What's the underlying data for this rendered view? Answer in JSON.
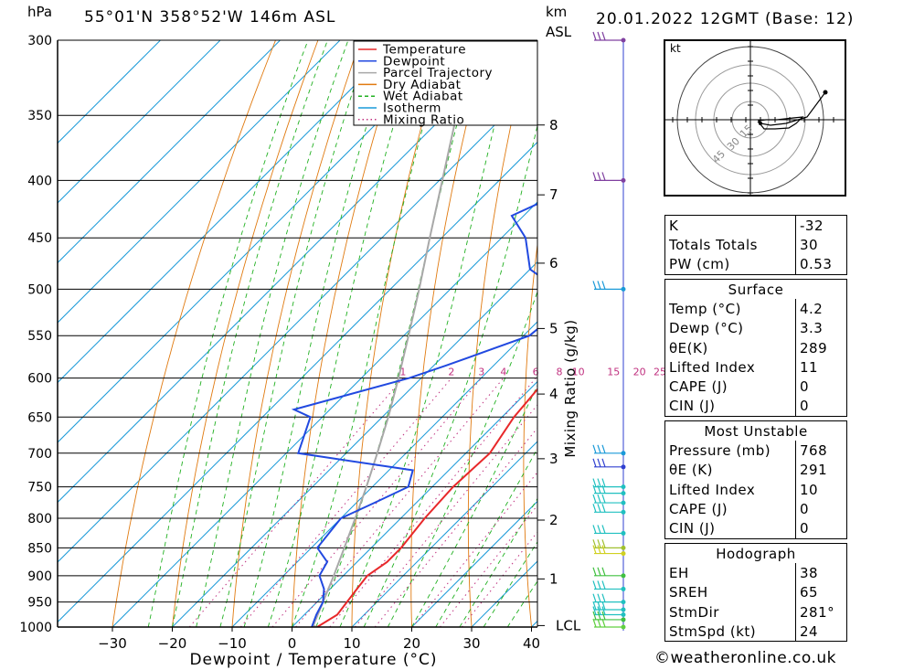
{
  "header": {
    "hpa_label": "hPa",
    "location": "55°01'N  358°52'W  146m  ASL",
    "km_label": "km",
    "asl_label": "ASL",
    "datetime": "20.01.2022  12GMT  (Base: 12)"
  },
  "chart_data": {
    "type": "line",
    "xlabel": "Dewpoint / Temperature (°C)",
    "ylabel": "hPa",
    "right_ylabel": "Mixing Ratio (g/kg)",
    "pressure_levels": [
      300,
      350,
      400,
      450,
      500,
      550,
      600,
      650,
      700,
      750,
      800,
      850,
      900,
      950,
      1000
    ],
    "x_ticks": [
      -30,
      -20,
      -10,
      0,
      10,
      20,
      30,
      40
    ],
    "xlim": [
      -40,
      40
    ],
    "km_ticks": [
      {
        "label": "8",
        "p": 357
      },
      {
        "label": "7",
        "p": 412
      },
      {
        "label": "6",
        "p": 474
      },
      {
        "label": "5",
        "p": 542
      },
      {
        "label": "4",
        "p": 620
      },
      {
        "label": "3",
        "p": 708
      },
      {
        "label": "2",
        "p": 803
      },
      {
        "label": "1",
        "p": 906
      },
      {
        "label": "LCL",
        "p": 997
      }
    ],
    "mixing_ratio_labels": [
      "1",
      "2",
      "3",
      "4",
      "6",
      "8",
      "10",
      "15",
      "20",
      "25"
    ],
    "legend": [
      {
        "name": "Temperature",
        "color": "#e8282a",
        "style": "solid"
      },
      {
        "name": "Dewpoint",
        "color": "#2149e0",
        "style": "solid"
      },
      {
        "name": "Parcel Trajectory",
        "color": "#a8a8a8",
        "style": "solid"
      },
      {
        "name": "Dry Adiabat",
        "color": "#e07a10",
        "style": "solid"
      },
      {
        "name": "Wet Adiabat",
        "color": "#20b020",
        "style": "dashed"
      },
      {
        "name": "Isotherm",
        "color": "#1a9ad8",
        "style": "solid"
      },
      {
        "name": "Mixing Ratio",
        "color": "#c0307f",
        "style": "dotted"
      }
    ],
    "temperature": [
      {
        "p": 1000,
        "t": 4.2
      },
      {
        "p": 975,
        "t": 5.5
      },
      {
        "p": 950,
        "t": 5.0
      },
      {
        "p": 925,
        "t": 4.5
      },
      {
        "p": 900,
        "t": 4.0
      },
      {
        "p": 875,
        "t": 5.0
      },
      {
        "p": 850,
        "t": 5.0
      },
      {
        "p": 825,
        "t": 4.5
      },
      {
        "p": 800,
        "t": 4.0
      },
      {
        "p": 750,
        "t": 3.5
      },
      {
        "p": 700,
        "t": 4.0
      },
      {
        "p": 650,
        "t": 2.0
      },
      {
        "p": 600,
        "t": 1.0
      },
      {
        "p": 550,
        "t": -2.0
      },
      {
        "p": 500,
        "t": -6.0
      },
      {
        "p": 450,
        "t": -11.5
      },
      {
        "p": 400,
        "t": -18.0
      },
      {
        "p": 350,
        "t": -25.0
      },
      {
        "p": 300,
        "t": -34.5
      }
    ],
    "dewpoint": [
      {
        "p": 1000,
        "t": 3.3
      },
      {
        "p": 975,
        "t": 2.0
      },
      {
        "p": 950,
        "t": 1.0
      },
      {
        "p": 925,
        "t": -1.0
      },
      {
        "p": 900,
        "t": -4.0
      },
      {
        "p": 875,
        "t": -5.0
      },
      {
        "p": 850,
        "t": -9.0
      },
      {
        "p": 800,
        "t": -10.0
      },
      {
        "p": 775,
        "t": -7.0
      },
      {
        "p": 750,
        "t": -4.0
      },
      {
        "p": 725,
        "t": -6.0
      },
      {
        "p": 700,
        "t": -28.0
      },
      {
        "p": 650,
        "t": -32.0
      },
      {
        "p": 640,
        "t": -36.0
      },
      {
        "p": 600,
        "t": -22.0
      },
      {
        "p": 585,
        "t": -18.0
      },
      {
        "p": 550,
        "t": -9.0
      },
      {
        "p": 520,
        "t": -8.0
      },
      {
        "p": 500,
        "t": -12.0
      },
      {
        "p": 480,
        "t": -20.0
      },
      {
        "p": 450,
        "t": -26.0
      },
      {
        "p": 430,
        "t": -32.0
      },
      {
        "p": 400,
        "t": -25.0
      },
      {
        "p": 380,
        "t": -26.0
      },
      {
        "p": 355,
        "t": -28.0
      },
      {
        "p": 345,
        "t": -44.0
      },
      {
        "p": 300,
        "t": -46.0
      }
    ],
    "parcel": [
      {
        "p": 1000,
        "t": 4.2
      },
      {
        "p": 997,
        "t": 3.3
      },
      {
        "p": 950,
        "t": 1.0
      },
      {
        "p": 900,
        "t": -1.6
      },
      {
        "p": 850,
        "t": -4.5
      },
      {
        "p": 800,
        "t": -7.6
      },
      {
        "p": 750,
        "t": -11.0
      },
      {
        "p": 700,
        "t": -14.8
      },
      {
        "p": 650,
        "t": -19.0
      },
      {
        "p": 600,
        "t": -23.8
      },
      {
        "p": 550,
        "t": -29.2
      },
      {
        "p": 500,
        "t": -35.2
      },
      {
        "p": 450,
        "t": -42.0
      },
      {
        "p": 400,
        "t": -49.5
      },
      {
        "p": 350,
        "t": -58.0
      },
      {
        "p": 310,
        "t": -65.0
      }
    ]
  },
  "hodograph": {
    "unit": "kt",
    "rings": [
      "15",
      "30",
      "45"
    ]
  },
  "indices": {
    "top": [
      {
        "label": "K",
        "value": "-32"
      },
      {
        "label": "Totals Totals",
        "value": "30"
      },
      {
        "label": "PW (cm)",
        "value": "0.53"
      }
    ],
    "surface_title": "Surface",
    "surface": [
      {
        "label": "Temp (°C)",
        "value": "4.2"
      },
      {
        "label": "Dewp (°C)",
        "value": "3.3"
      },
      {
        "label": "θE(K)",
        "value": "289"
      },
      {
        "label": "Lifted Index",
        "value": "11"
      },
      {
        "label": "CAPE (J)",
        "value": "0"
      },
      {
        "label": "CIN (J)",
        "value": "0"
      }
    ],
    "mu_title": "Most Unstable",
    "mu": [
      {
        "label": "Pressure (mb)",
        "value": "768"
      },
      {
        "label": "θE (K)",
        "value": "291"
      },
      {
        "label": "Lifted Index",
        "value": "10"
      },
      {
        "label": "CAPE (J)",
        "value": "0"
      },
      {
        "label": "CIN (J)",
        "value": "0"
      }
    ],
    "hodo_title": "Hodograph",
    "hodo": [
      {
        "label": "EH",
        "value": "38"
      },
      {
        "label": "SREH",
        "value": "65"
      },
      {
        "label": "StmDir",
        "value": "281°"
      },
      {
        "label": "StmSpd (kt)",
        "value": "24"
      }
    ]
  },
  "copyright": "©weatheronline.co.uk"
}
